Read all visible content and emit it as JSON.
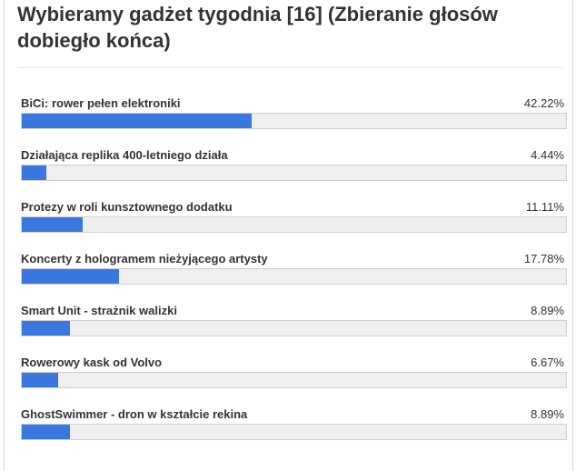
{
  "poll": {
    "title": "Wybieramy gadżet tygodnia [16] (Zbieranie głosów dobiegło końca)",
    "accent_color": "#3a78e0",
    "options": [
      {
        "label": "BiCi: rower pełen elektroniki",
        "percent_text": "42.22%",
        "percent": 42.22
      },
      {
        "label": "Działająca replika 400-letniego działa",
        "percent_text": "4.44%",
        "percent": 4.44
      },
      {
        "label": "Protezy w roli kunsztownego dodatku",
        "percent_text": "11.11%",
        "percent": 11.11
      },
      {
        "label": "Koncerty z hologramem nieżyjącego artysty",
        "percent_text": "17.78%",
        "percent": 17.78
      },
      {
        "label": "Smart Unit - strażnik walizki",
        "percent_text": "8.89%",
        "percent": 8.89
      },
      {
        "label": "Rowerowy kask od Volvo",
        "percent_text": "6.67%",
        "percent": 6.67
      },
      {
        "label": "GhostSwimmer - dron w kształcie rekina",
        "percent_text": "8.89%",
        "percent": 8.89
      }
    ]
  }
}
